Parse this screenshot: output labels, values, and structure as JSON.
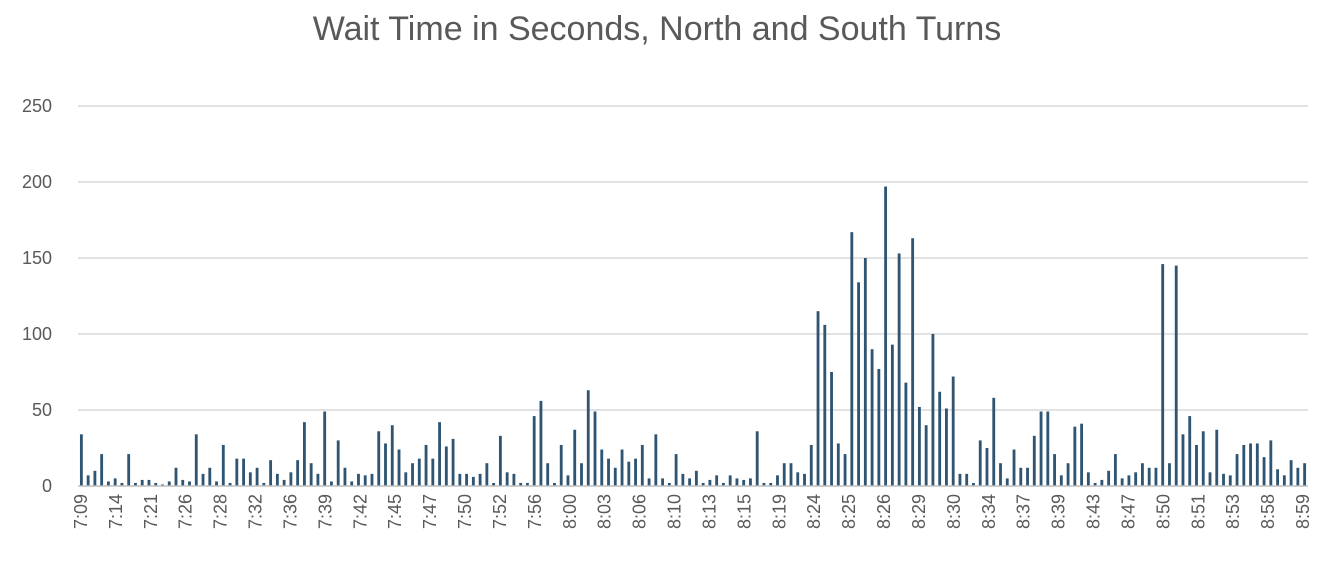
{
  "chart_data": {
    "type": "bar",
    "title": "Wait Time in Seconds, North and South Turns",
    "xlabel": "",
    "ylabel": "",
    "ylim": [
      0,
      250
    ],
    "yticks": [
      0,
      50,
      100,
      150,
      200,
      250
    ],
    "grid": true,
    "bar_color": "#2f5572",
    "x_tick_labels": [
      "7:09",
      "7:14",
      "7:21",
      "7:26",
      "7:28",
      "7:32",
      "7:36",
      "7:39",
      "7:42",
      "7:45",
      "7:47",
      "7:50",
      "7:52",
      "7:56",
      "8:00",
      "8:03",
      "8:06",
      "8:10",
      "8:13",
      "8:15",
      "8:19",
      "8:24",
      "8:25",
      "8:26",
      "8:29",
      "8:30",
      "8:34",
      "8:37",
      "8:39",
      "8:43",
      "8:47",
      "8:50",
      "8:51",
      "8:53",
      "8:58",
      "8:59"
    ],
    "values": [
      34,
      7,
      10,
      21,
      3,
      5,
      2,
      21,
      2,
      4,
      4,
      2,
      1,
      3,
      12,
      4,
      3,
      34,
      8,
      12,
      3,
      27,
      2,
      18,
      18,
      9,
      12,
      2,
      17,
      8,
      4,
      9,
      17,
      42,
      15,
      8,
      49,
      3,
      30,
      12,
      3,
      8,
      7,
      8,
      36,
      28,
      40,
      24,
      9,
      15,
      18,
      27,
      18,
      42,
      26,
      31,
      8,
      8,
      6,
      8,
      15,
      2,
      33,
      9,
      8,
      2,
      2,
      46,
      56,
      15,
      2,
      27,
      7,
      37,
      15,
      63,
      49,
      24,
      18,
      12,
      24,
      16,
      18,
      27,
      5,
      34,
      5,
      2,
      21,
      8,
      5,
      10,
      2,
      4,
      7,
      2,
      7,
      5,
      4,
      5,
      36,
      2,
      2,
      7,
      15,
      15,
      9,
      8,
      27,
      115,
      106,
      75,
      28,
      21,
      167,
      134,
      150,
      90,
      77,
      197,
      93,
      153,
      68,
      163,
      52,
      40,
      100,
      62,
      51,
      72,
      8,
      8,
      2,
      30,
      25,
      58,
      15,
      5,
      24,
      12,
      12,
      33,
      49,
      49,
      21,
      7,
      15,
      39,
      41,
      9,
      2,
      4,
      10,
      21,
      5,
      7,
      9,
      15,
      12,
      12,
      146,
      15,
      145,
      34,
      46,
      27,
      36,
      9,
      37,
      8,
      7,
      21,
      27,
      28,
      28,
      19,
      30,
      11,
      7,
      17,
      12,
      15
    ]
  }
}
